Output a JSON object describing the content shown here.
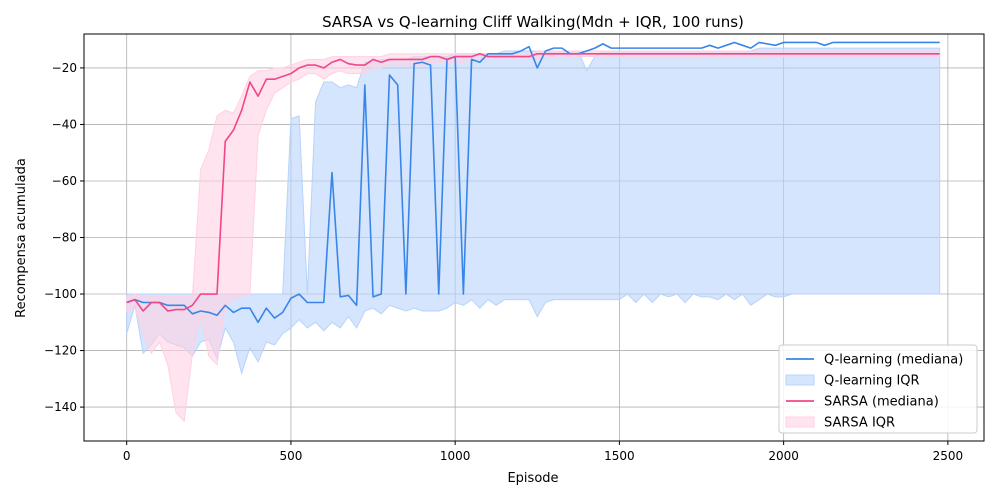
{
  "chart_data": {
    "type": "line",
    "title": "SARSA vs Q-learning Cliff Walking(Mdn + IQR, 100 runs)",
    "xlabel": "Episode",
    "ylabel": "Recompensa acumulada",
    "xlim": [
      -130,
      2610
    ],
    "ylim": [
      -152,
      -8
    ],
    "xticks": [
      0,
      500,
      1000,
      1500,
      2000,
      2500
    ],
    "yticks": [
      -140,
      -120,
      -100,
      -80,
      -60,
      -40,
      -20
    ],
    "grid": true,
    "legend_position": "lower-right",
    "series": [
      {
        "name": "Q-learning (mediana)",
        "band_name": "Q-learning IQR",
        "color": "#3a86e8",
        "band_color": "#b8d3fb",
        "x": [
          0,
          25,
          50,
          75,
          100,
          125,
          150,
          175,
          200,
          225,
          250,
          275,
          300,
          325,
          350,
          375,
          400,
          425,
          450,
          475,
          500,
          525,
          550,
          575,
          600,
          625,
          650,
          675,
          700,
          725,
          750,
          775,
          800,
          825,
          850,
          875,
          900,
          925,
          950,
          975,
          1000,
          1025,
          1050,
          1075,
          1100,
          1125,
          1150,
          1175,
          1200,
          1225,
          1250,
          1275,
          1300,
          1325,
          1350,
          1375,
          1400,
          1425,
          1450,
          1475,
          1500,
          1525,
          1550,
          1575,
          1600,
          1625,
          1650,
          1675,
          1700,
          1725,
          1750,
          1775,
          1800,
          1825,
          1850,
          1875,
          1900,
          1925,
          1950,
          1975,
          2000,
          2025,
          2050,
          2075,
          2100,
          2125,
          2150,
          2175,
          2200,
          2225,
          2250,
          2275,
          2300,
          2325,
          2350,
          2375,
          2400,
          2425,
          2450,
          2475
        ],
        "median": [
          -103,
          -102,
          -103,
          -103,
          -103,
          -104,
          -104,
          -104,
          -107,
          -106,
          -106.5,
          -107.5,
          -104,
          -106.5,
          -105,
          -105,
          -110,
          -105,
          -108.5,
          -106.5,
          -101.5,
          -100,
          -103,
          -103,
          -103,
          -57,
          -101,
          -100.5,
          -104,
          -26,
          -101,
          -100,
          -22.5,
          -26,
          -100,
          -18.5,
          -18,
          -19,
          -100,
          -17,
          -16,
          -100,
          -17,
          -18,
          -15,
          -15,
          -15,
          -15,
          -14,
          -12.5,
          -20,
          -14,
          -13,
          -13,
          -15,
          -15,
          -14,
          -13,
          -11.5,
          -13,
          -13,
          -13,
          -13,
          -13,
          -13,
          -13,
          -13,
          -13,
          -13,
          -13,
          -13,
          -12,
          -13,
          -12,
          -11,
          -12,
          -13,
          -11,
          -11.5,
          -12,
          -11,
          -11,
          -11,
          -11,
          -11,
          -12,
          -11,
          -11,
          -11,
          -11,
          -11,
          -11,
          -11,
          -11,
          -11,
          -11,
          -11,
          -11,
          -11,
          -11
        ],
        "q1": [
          -114,
          -104,
          -121,
          -118,
          -114,
          -117,
          -118,
          -119,
          -122,
          -117,
          -116,
          -123,
          -112,
          -117,
          -128,
          -119,
          -124,
          -117,
          -118,
          -114,
          -112,
          -109,
          -112,
          -110,
          -113,
          -110,
          -112,
          -108,
          -112,
          -106,
          -105,
          -107,
          -104,
          -105,
          -106,
          -105,
          -106,
          -106,
          -106,
          -105,
          -103,
          -104,
          -102,
          -105,
          -102,
          -104,
          -102,
          -102,
          -102,
          -102,
          -108,
          -103,
          -102,
          -102,
          -102,
          -102,
          -102,
          -102,
          -102,
          -102,
          -102,
          -100,
          -103,
          -100,
          -103,
          -100,
          -101,
          -100,
          -103,
          -100,
          -101,
          -101,
          -102,
          -100,
          -102,
          -100,
          -104,
          -102,
          -100,
          -101,
          -101,
          -100,
          -100,
          -100,
          -100,
          -100,
          -100,
          -100,
          -100,
          -100,
          -100,
          -100,
          -100,
          -100,
          -100,
          -100,
          -100,
          -100,
          -100,
          -100
        ],
        "q3": [
          -100,
          -100,
          -100,
          -100,
          -100,
          -100,
          -100,
          -100,
          -100,
          -100,
          -100,
          -100,
          -100,
          -100,
          -100,
          -100,
          -100,
          -100,
          -100,
          -100,
          -38,
          -37,
          -100,
          -32,
          -25,
          -25,
          -27,
          -26,
          -27,
          -18,
          -18,
          -17,
          -17,
          -17,
          -17,
          -16,
          -16,
          -16,
          -16,
          -16,
          -15,
          -15,
          -15,
          -15,
          -15,
          -15,
          -14,
          -14,
          -14,
          -14,
          -14,
          -14,
          -14,
          -14,
          -14,
          -14,
          -21,
          -16,
          -14,
          -14,
          -14,
          -14,
          -14,
          -14,
          -14,
          -14,
          -14,
          -14,
          -14,
          -14,
          -14,
          -14,
          -14,
          -14,
          -14,
          -14,
          -14,
          -13,
          -13,
          -13,
          -13,
          -13,
          -13,
          -13,
          -13,
          -13,
          -13,
          -13,
          -13,
          -13,
          -13,
          -13,
          -13,
          -13,
          -13,
          -13,
          -13,
          -13,
          -13,
          -13
        ]
      },
      {
        "name": "SARSA (mediana)",
        "band_name": "SARSA IQR",
        "color": "#f0468a",
        "band_color": "#ffd1e3",
        "x": [
          0,
          25,
          50,
          75,
          100,
          125,
          150,
          175,
          200,
          225,
          250,
          275,
          300,
          325,
          350,
          375,
          400,
          425,
          450,
          475,
          500,
          525,
          550,
          575,
          600,
          625,
          650,
          675,
          700,
          725,
          750,
          775,
          800,
          825,
          850,
          875,
          900,
          925,
          950,
          975,
          1000,
          1025,
          1050,
          1075,
          1100,
          1125,
          1150,
          1175,
          1200,
          1225,
          1250,
          1275,
          1300,
          1325,
          1350,
          1375,
          1400,
          1425,
          1450,
          1475,
          1500,
          1525,
          1550,
          1575,
          1600,
          1625,
          1650,
          1675,
          1700,
          1725,
          1750,
          1775,
          1800,
          1825,
          1850,
          1875,
          1900,
          1925,
          1950,
          1975,
          2000,
          2025,
          2050,
          2075,
          2100,
          2125,
          2150,
          2175,
          2200,
          2225,
          2250,
          2275,
          2300,
          2325,
          2350,
          2375,
          2400,
          2425,
          2450,
          2475
        ],
        "median": [
          -103,
          -102,
          -106,
          -103,
          -103,
          -106,
          -105.5,
          -105.5,
          -104,
          -100,
          -100,
          -100,
          -46,
          -42,
          -35,
          -25,
          -30,
          -24,
          -24,
          -23,
          -22,
          -20,
          -19,
          -19,
          -20,
          -18,
          -17,
          -18.5,
          -19,
          -19,
          -17,
          -18,
          -17,
          -17,
          -17,
          -17,
          -17,
          -16,
          -16,
          -17,
          -16,
          -16,
          -16,
          -15,
          -16,
          -16,
          -16,
          -16,
          -16,
          -16,
          -15,
          -15,
          -15,
          -15,
          -15,
          -15,
          -15,
          -15,
          -15,
          -15,
          -15,
          -15,
          -15,
          -15,
          -15,
          -15,
          -15,
          -15,
          -15,
          -15,
          -15,
          -15,
          -15,
          -15,
          -15,
          -15,
          -15,
          -15,
          -15,
          -15,
          -15,
          -15,
          -15,
          -15,
          -15,
          -15,
          -15,
          -15,
          -15,
          -15,
          -15,
          -15,
          -15,
          -15,
          -15,
          -15,
          -15,
          -15,
          -15,
          -15
        ],
        "q1": [
          -106,
          -105,
          -114,
          -121,
          -117,
          -125,
          -142,
          -145,
          -121,
          -108,
          -122,
          -125,
          -104,
          -102,
          -101,
          -100,
          -44,
          -35,
          -29,
          -27,
          -25,
          -24,
          -22,
          -22,
          -24,
          -22,
          -21,
          -22,
          -22,
          -22,
          -20,
          -20,
          -19,
          -19,
          -19,
          -19,
          -19,
          -18,
          -18,
          -18,
          -18,
          -18,
          -17,
          -17,
          -17,
          -17,
          -17,
          -17,
          -17,
          -17,
          -17,
          -16,
          -16,
          -16,
          -16,
          -16,
          -16,
          -16,
          -16,
          -16,
          -16,
          -16,
          -16,
          -16,
          -16,
          -16,
          -16,
          -16,
          -16,
          -16,
          -16,
          -16,
          -16,
          -16,
          -16,
          -16,
          -16,
          -16,
          -16,
          -16,
          -16,
          -16,
          -16,
          -16,
          -16,
          -16,
          -16,
          -16,
          -16,
          -16,
          -16,
          -16,
          -16,
          -16,
          -16,
          -16,
          -16,
          -16,
          -16,
          -16
        ],
        "q3": [
          -101,
          -100,
          -101,
          -101,
          -101,
          -101,
          -101,
          -101,
          -101,
          -56,
          -49,
          -37,
          -35,
          -36,
          -30,
          -23,
          -21,
          -21,
          -20,
          -20,
          -19,
          -18,
          -17,
          -17,
          -17,
          -16,
          -16,
          -16,
          -16,
          -16,
          -16,
          -16,
          -15,
          -15,
          -15,
          -15,
          -15,
          -15,
          -15,
          -15,
          -15,
          -15,
          -15,
          -15,
          -15,
          -15,
          -15,
          -15,
          -15,
          -15,
          -14,
          -14,
          -14,
          -14,
          -14,
          -14,
          -14,
          -14,
          -14,
          -14,
          -14,
          -14,
          -14,
          -14,
          -14,
          -14,
          -14,
          -14,
          -14,
          -14,
          -14,
          -14,
          -14,
          -14,
          -14,
          -14,
          -14,
          -14,
          -14,
          -14,
          -14,
          -14,
          -14,
          -14,
          -14,
          -14,
          -14,
          -14,
          -14,
          -14,
          -14,
          -14,
          -14,
          -14,
          -14,
          -14,
          -14,
          -14,
          -14,
          -14
        ]
      }
    ]
  }
}
